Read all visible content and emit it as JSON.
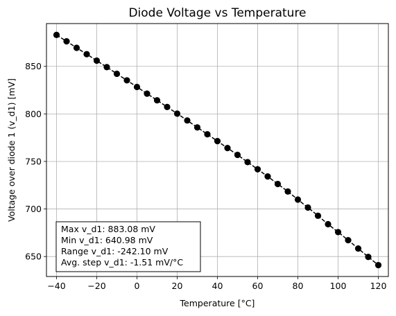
{
  "chart_data": {
    "type": "line",
    "title": "Diode Voltage vs Temperature",
    "xlabel": "Temperature [°C]",
    "ylabel": "Voltage over diode 1 (v_d1) [mV]",
    "xlim": [
      -45,
      125
    ],
    "ylim": [
      629,
      895
    ],
    "x_ticks": [
      -40,
      -20,
      0,
      20,
      40,
      60,
      80,
      100,
      120
    ],
    "x_tick_labels": [
      "−40",
      "−20",
      "0",
      "20",
      "40",
      "60",
      "80",
      "100",
      "120"
    ],
    "y_ticks": [
      650,
      700,
      750,
      800,
      850
    ],
    "y_tick_labels": [
      "650",
      "700",
      "750",
      "800",
      "850"
    ],
    "grid": true,
    "series": [
      {
        "color": "#000000",
        "line_style": "dashed",
        "marker": "circle",
        "x": [
          -40,
          -35,
          -30,
          -25,
          -20,
          -15,
          -10,
          -5,
          0,
          5,
          10,
          15,
          20,
          25,
          30,
          35,
          40,
          45,
          50,
          55,
          60,
          65,
          70,
          75,
          80,
          85,
          90,
          95,
          100,
          105,
          110,
          115,
          120
        ],
        "y": [
          883.08,
          876.3,
          869.5,
          862.8,
          856.0,
          849.2,
          842.2,
          835.3,
          828.3,
          821.3,
          814.3,
          807.3,
          800.3,
          793.1,
          785.8,
          778.6,
          771.4,
          764.1,
          756.9,
          749.3,
          741.8,
          734.2,
          726.3,
          718.4,
          709.9,
          701.5,
          692.9,
          684.0,
          675.7,
          667.2,
          658.4,
          649.6,
          640.98
        ]
      }
    ],
    "annotation": {
      "lines": [
        "Max v_d1: 883.08 mV",
        "Min v_d1: 640.98 mV",
        "Range v_d1: -242.10 mV",
        "Avg. step v_d1: -1.51 mV/°C"
      ],
      "placement": "bottom-left"
    }
  }
}
